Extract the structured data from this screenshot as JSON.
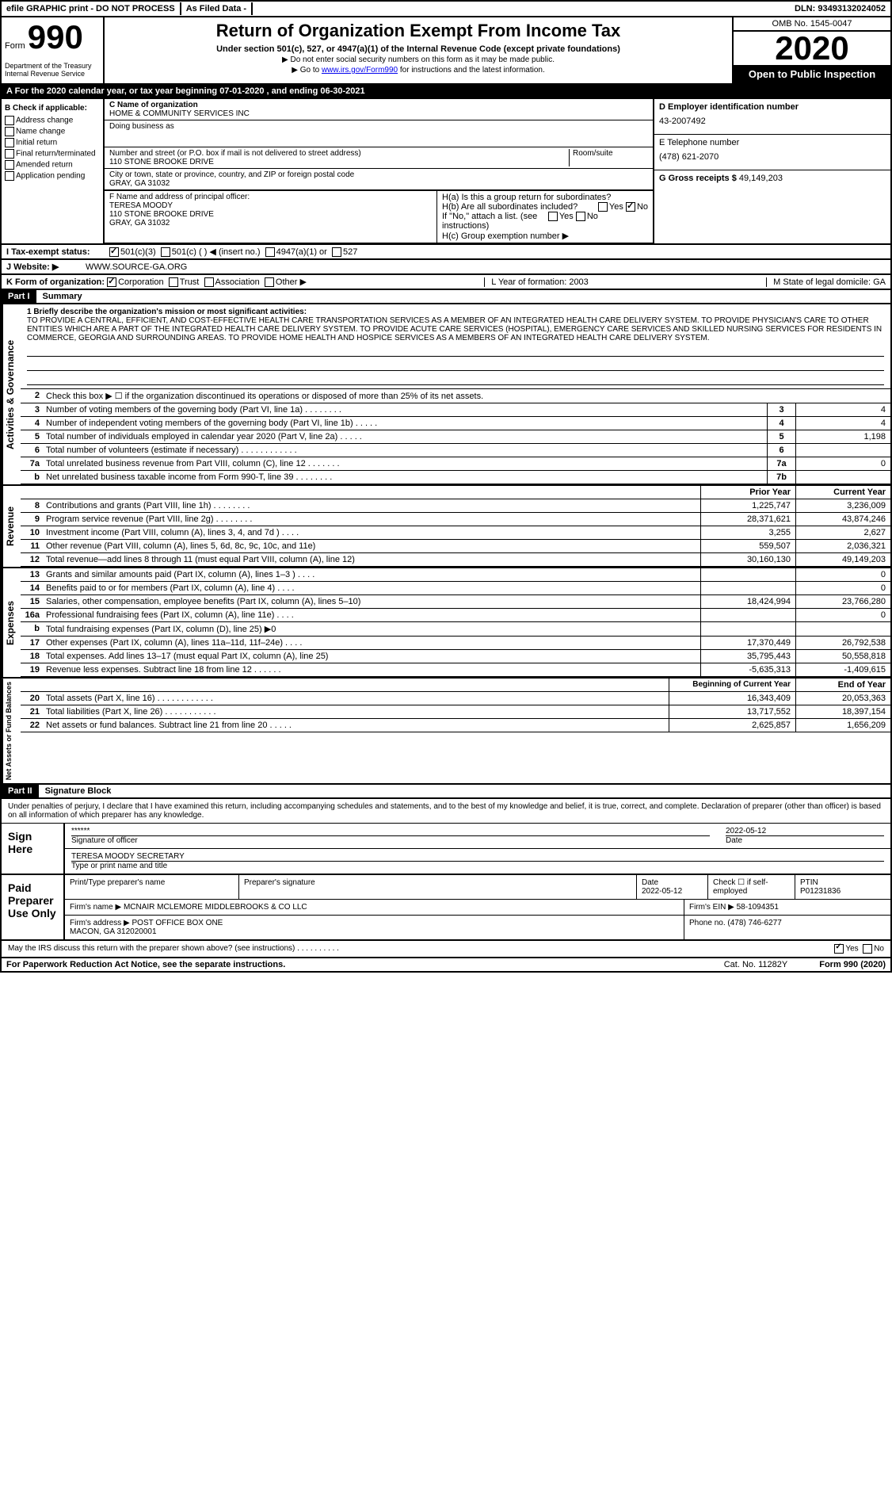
{
  "topbar": {
    "efile": "efile GRAPHIC print - DO NOT PROCESS",
    "asfiled": "As Filed Data -",
    "dln": "DLN: 93493132024052"
  },
  "header": {
    "form_label": "Form",
    "form_no": "990",
    "dept": "Department of the Treasury\nInternal Revenue Service",
    "title": "Return of Organization Exempt From Income Tax",
    "subtitle": "Under section 501(c), 527, or 4947(a)(1) of the Internal Revenue Code (except private foundations)",
    "note1": "▶ Do not enter social security numbers on this form as it may be made public.",
    "note2_a": "▶ Go to ",
    "note2_link": "www.irs.gov/Form990",
    "note2_b": " for instructions and the latest information.",
    "omb": "OMB No. 1545-0047",
    "year": "2020",
    "ptp": "Open to Public Inspection"
  },
  "rowA": "A  For the 2020 calendar year, or tax year beginning 07-01-2020   , and ending 06-30-2021",
  "boxB": {
    "label": "B Check if applicable:",
    "items": [
      "Address change",
      "Name change",
      "Initial return",
      "Final return/terminated",
      "Amended return",
      "Application pending"
    ]
  },
  "boxC": {
    "name_lbl": "C Name of organization",
    "name": "HOME & COMMUNITY SERVICES INC",
    "dba_lbl": "Doing business as",
    "addr_lbl": "Number and street (or P.O. box if mail is not delivered to street address)",
    "room_lbl": "Room/suite",
    "addr": "110 STONE BROOKE DRIVE",
    "city_lbl": "City or town, state or province, country, and ZIP or foreign postal code",
    "city": "GRAY, GA  31032"
  },
  "boxD": {
    "lbl": "D Employer identification number",
    "val": "43-2007492"
  },
  "boxE": {
    "lbl": "E Telephone number",
    "val": "(478) 621-2070"
  },
  "boxG": {
    "lbl": "G Gross receipts $",
    "val": "49,149,203"
  },
  "boxF": {
    "lbl": "F  Name and address of principal officer:",
    "name": "TERESA MOODY",
    "addr1": "110 STONE BROOKE DRIVE",
    "addr2": "GRAY, GA  31032"
  },
  "boxH": {
    "a": "H(a)  Is this a group return for subordinates?",
    "b": "H(b)  Are all subordinates included?",
    "note": "If \"No,\" attach a list. (see instructions)",
    "c": "H(c)  Group exemption number ▶"
  },
  "rowI": {
    "lbl": "I  Tax-exempt status:",
    "c1": "501(c)(3)",
    "c2": "501(c) (   ) ◀ (insert no.)",
    "c3": "4947(a)(1) or",
    "c4": "527"
  },
  "rowJ": {
    "lbl": "J  Website: ▶",
    "val": "WWW.SOURCE-GA.ORG"
  },
  "rowK": {
    "lbl": "K Form of organization:",
    "opts": [
      "Corporation",
      "Trust",
      "Association",
      "Other ▶"
    ],
    "L": "L Year of formation: 2003",
    "M": "M State of legal domicile: GA"
  },
  "part1": {
    "num": "Part I",
    "title": "Summary"
  },
  "mission": {
    "lbl": "1  Briefly describe the organization's mission or most significant activities:",
    "txt": "TO PROVIDE A CENTRAL, EFFICIENT, AND COST-EFFECTIVE HEALTH CARE TRANSPORTATION SERVICES AS A MEMBER OF AN INTEGRATED HEALTH CARE DELIVERY SYSTEM. TO PROVIDE PHYSICIAN'S CARE TO OTHER ENTITIES WHICH ARE A PART OF THE INTEGRATED HEALTH CARE DELIVERY SYSTEM. TO PROVIDE ACUTE CARE SERVICES (HOSPITAL), EMERGENCY CARE SERVICES AND SKILLED NURSING SERVICES FOR RESIDENTS IN COMMERCE, GEORGIA AND SURROUNDING AREAS. TO PROVIDE HOME HEALTH AND HOSPICE SERVICES AS A MEMBERS OF AN INTEGRATED HEALTH CARE DELIVERY SYSTEM."
  },
  "gov_lines": [
    {
      "n": "2",
      "t": "Check this box ▶ ☐ if the organization discontinued its operations or disposed of more than 25% of its net assets."
    },
    {
      "n": "3",
      "t": "Number of voting members of the governing body (Part VI, line 1a)   .   .   .   .   .   .   .   .",
      "b": "3",
      "v": "4"
    },
    {
      "n": "4",
      "t": "Number of independent voting members of the governing body (Part VI, line 1b)   .   .   .   .   .",
      "b": "4",
      "v": "4"
    },
    {
      "n": "5",
      "t": "Total number of individuals employed in calendar year 2020 (Part V, line 2a)   .   .   .   .   .",
      "b": "5",
      "v": "1,198"
    },
    {
      "n": "6",
      "t": "Total number of volunteers (estimate if necessary)   .   .   .   .   .   .   .   .   .   .   .   .",
      "b": "6",
      "v": ""
    },
    {
      "n": "7a",
      "t": "Total unrelated business revenue from Part VIII, column (C), line 12   .   .   .   .   .   .   .",
      "b": "7a",
      "v": "0"
    },
    {
      "n": "b",
      "t": "Net unrelated business taxable income from Form 990-T, line 39   .   .   .   .   .   .   .   .",
      "b": "7b",
      "v": ""
    }
  ],
  "rev_hdr": {
    "py": "Prior Year",
    "cy": "Current Year"
  },
  "rev_lines": [
    {
      "n": "8",
      "t": "Contributions and grants (Part VIII, line 1h)   .   .   .   .   .   .   .   .",
      "py": "1,225,747",
      "cy": "3,236,009"
    },
    {
      "n": "9",
      "t": "Program service revenue (Part VIII, line 2g)   .   .   .   .   .   .   .   .",
      "py": "28,371,621",
      "cy": "43,874,246"
    },
    {
      "n": "10",
      "t": "Investment income (Part VIII, column (A), lines 3, 4, and 7d )   .   .   .   .",
      "py": "3,255",
      "cy": "2,627"
    },
    {
      "n": "11",
      "t": "Other revenue (Part VIII, column (A), lines 5, 6d, 8c, 9c, 10c, and 11e)",
      "py": "559,507",
      "cy": "2,036,321"
    },
    {
      "n": "12",
      "t": "Total revenue—add lines 8 through 11 (must equal Part VIII, column (A), line 12)",
      "py": "30,160,130",
      "cy": "49,149,203"
    }
  ],
  "exp_lines": [
    {
      "n": "13",
      "t": "Grants and similar amounts paid (Part IX, column (A), lines 1–3 )   .   .   .   .",
      "py": "",
      "cy": "0"
    },
    {
      "n": "14",
      "t": "Benefits paid to or for members (Part IX, column (A), line 4)   .   .   .   .",
      "py": "",
      "cy": "0"
    },
    {
      "n": "15",
      "t": "Salaries, other compensation, employee benefits (Part IX, column (A), lines 5–10)",
      "py": "18,424,994",
      "cy": "23,766,280"
    },
    {
      "n": "16a",
      "t": "Professional fundraising fees (Part IX, column (A), line 11e)   .   .   .   .",
      "py": "",
      "cy": "0"
    },
    {
      "n": "b",
      "t": "Total fundraising expenses (Part IX, column (D), line 25) ▶0",
      "py": "",
      "cy": ""
    },
    {
      "n": "17",
      "t": "Other expenses (Part IX, column (A), lines 11a–11d, 11f–24e)   .   .   .   .",
      "py": "17,370,449",
      "cy": "26,792,538"
    },
    {
      "n": "18",
      "t": "Total expenses. Add lines 13–17 (must equal Part IX, column (A), line 25)",
      "py": "35,795,443",
      "cy": "50,558,818"
    },
    {
      "n": "19",
      "t": "Revenue less expenses. Subtract line 18 from line 12   .   .   .   .   .   .",
      "py": "-5,635,313",
      "cy": "-1,409,615"
    }
  ],
  "na_hdr": {
    "b": "Beginning of Current Year",
    "e": "End of Year"
  },
  "na_lines": [
    {
      "n": "20",
      "t": "Total assets (Part X, line 16)   .   .   .   .   .   .   .   .   .   .   .   .",
      "py": "16,343,409",
      "cy": "20,053,363"
    },
    {
      "n": "21",
      "t": "Total liabilities (Part X, line 26)   .   .   .   .   .   .   .   .   .   .   .",
      "py": "13,717,552",
      "cy": "18,397,154"
    },
    {
      "n": "22",
      "t": "Net assets or fund balances. Subtract line 21 from line 20   .   .   .   .   .",
      "py": "2,625,857",
      "cy": "1,656,209"
    }
  ],
  "part2": {
    "num": "Part II",
    "title": "Signature Block"
  },
  "sig": {
    "declare": "Under penalties of perjury, I declare that I have examined this return, including accompanying schedules and statements, and to the best of my knowledge and belief, it is true, correct, and complete. Declaration of preparer (other than officer) is based on all information of which preparer has any knowledge.",
    "sign_here": "Sign Here",
    "stars": "******",
    "sig_of": "Signature of officer",
    "date": "2022-05-12",
    "date_lbl": "Date",
    "name": "TERESA MOODY SECRETARY",
    "name_lbl": "Type or print name and title",
    "paid": "Paid Preparer Use Only",
    "p_name_lbl": "Print/Type preparer's name",
    "p_sig_lbl": "Preparer's signature",
    "p_date_lbl": "Date",
    "p_date": "2022-05-12",
    "p_check": "Check ☐ if self-employed",
    "ptin_lbl": "PTIN",
    "ptin": "P01231836",
    "firm_name_lbl": "Firm's name   ▶",
    "firm_name": "MCNAIR MCLEMORE MIDDLEBROOKS & CO LLC",
    "firm_ein_lbl": "Firm's EIN ▶",
    "firm_ein": "58-1094351",
    "firm_addr_lbl": "Firm's address ▶",
    "firm_addr": "POST OFFICE BOX ONE\nMACON, GA  312020001",
    "phone_lbl": "Phone no.",
    "phone": "(478) 746-6277",
    "discuss": "May the IRS discuss this return with the preparer shown above? (see instructions)   .   .   .   .   .   .   .   .   .   ."
  },
  "footer": {
    "pra": "For Paperwork Reduction Act Notice, see the separate instructions.",
    "cat": "Cat. No. 11282Y",
    "form": "Form 990 (2020)"
  }
}
